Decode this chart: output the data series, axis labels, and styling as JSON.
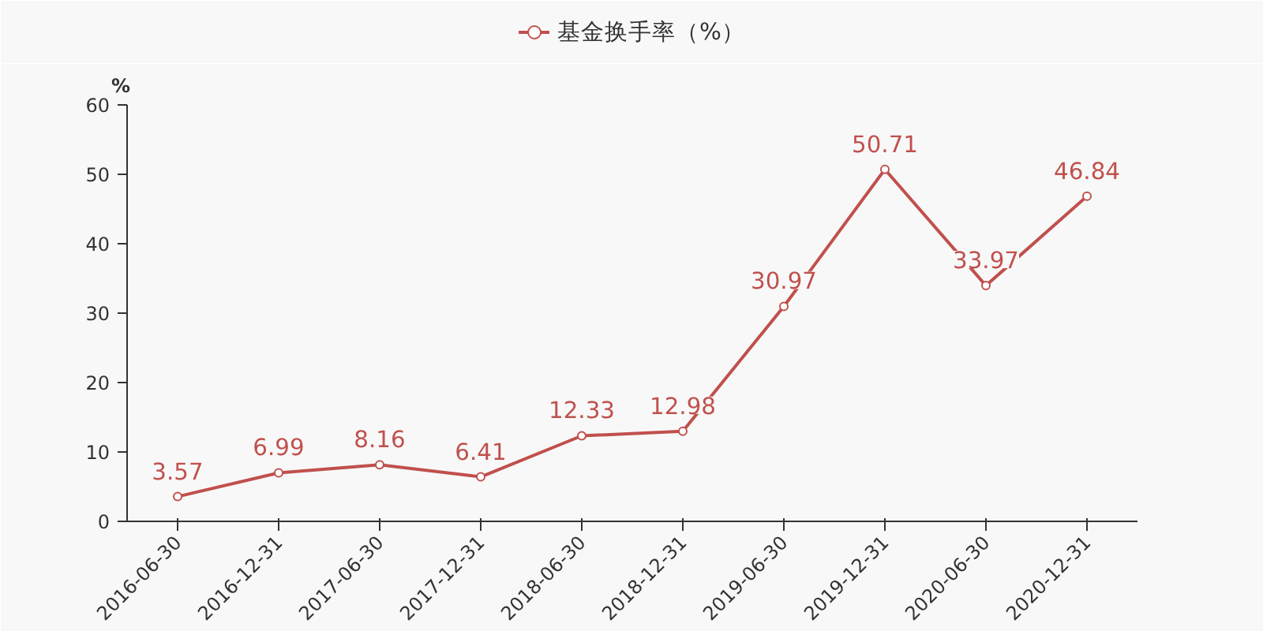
{
  "chart_data": {
    "type": "line",
    "ylabel": "%",
    "categories": [
      "2016-06-30",
      "2016-12-31",
      "2017-06-30",
      "2017-12-31",
      "2018-06-30",
      "2018-12-31",
      "2019-06-30",
      "2019-12-31",
      "2020-06-30",
      "2020-12-31"
    ],
    "series": [
      {
        "name": "基金换手率（%）",
        "color": "#c0504d",
        "values": [
          3.57,
          6.99,
          8.16,
          6.41,
          12.33,
          12.98,
          30.97,
          50.71,
          33.97,
          46.84
        ]
      }
    ],
    "ylim": [
      0,
      60
    ],
    "yticks": [
      0,
      10,
      20,
      30,
      40,
      50,
      60
    ],
    "grid": false,
    "legend": "top",
    "marker": "circle",
    "line_style": "solid",
    "data_labels": true
  }
}
